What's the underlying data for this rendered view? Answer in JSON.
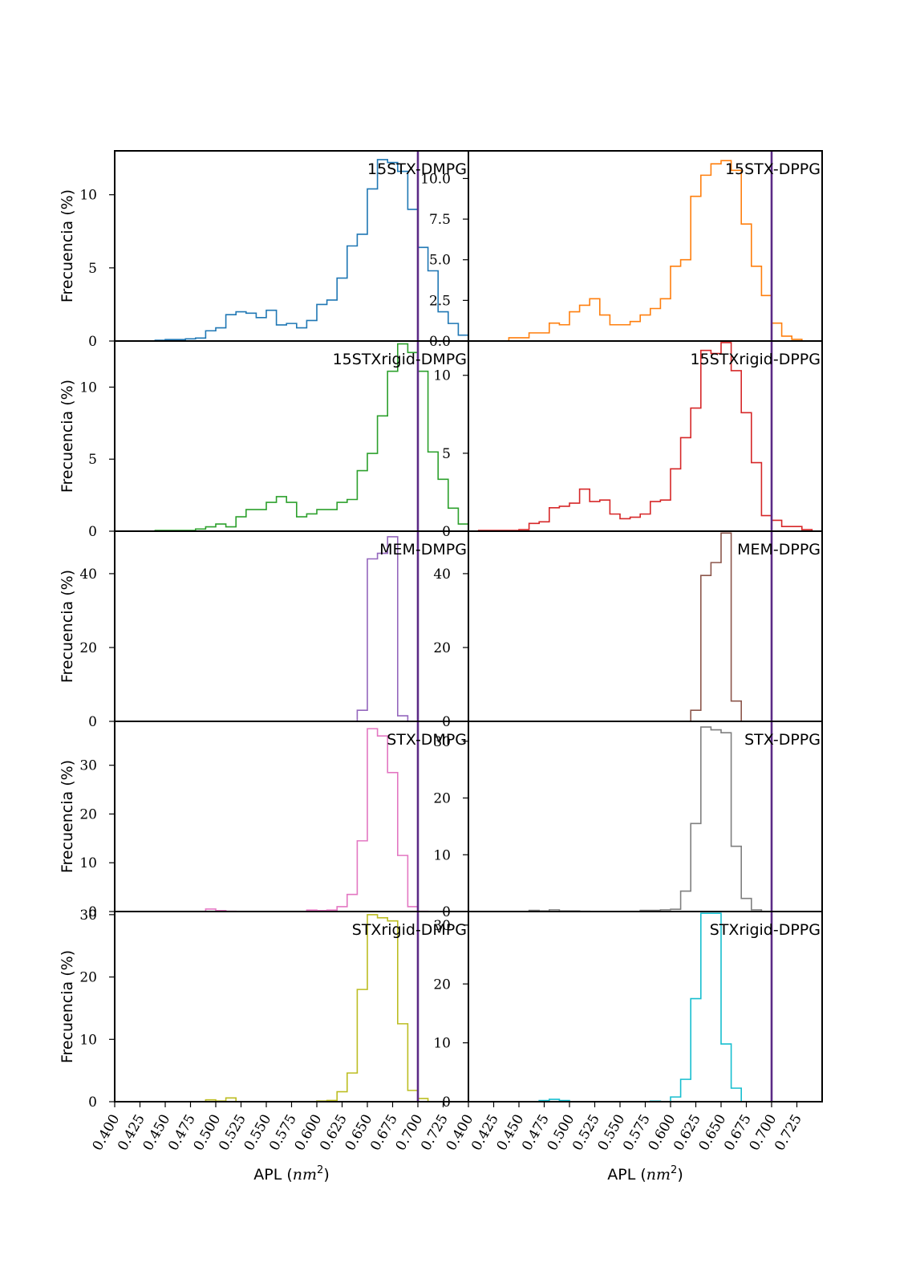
{
  "chart_data": [
    {
      "type": "histogram",
      "title": "15STX-DMPG",
      "ylabel": "Frecuencia (%)",
      "xlabel": "",
      "color": "#1f77b4",
      "ylim": [
        0,
        13
      ],
      "yticks": [
        0,
        5,
        10
      ],
      "bins": [
        0.44,
        0.45,
        0.46,
        0.47,
        0.48,
        0.49,
        0.5,
        0.51,
        0.52,
        0.53,
        0.54,
        0.55,
        0.56,
        0.57,
        0.58,
        0.59,
        0.6,
        0.61,
        0.62,
        0.63,
        0.64,
        0.65,
        0.66,
        0.67,
        0.68,
        0.69,
        0.7,
        0.71,
        0.72,
        0.73,
        0.74
      ],
      "values": [
        0.05,
        0.1,
        0.1,
        0.15,
        0.2,
        0.7,
        0.9,
        1.8,
        2.0,
        1.9,
        1.6,
        2.1,
        1.1,
        1.2,
        0.9,
        1.4,
        2.5,
        2.8,
        4.3,
        6.5,
        7.3,
        10.4,
        12.4,
        12.2,
        11.6,
        9.0,
        6.4,
        4.8,
        2.0,
        1.2,
        0.4
      ]
    },
    {
      "type": "histogram",
      "title": "15STX-DPPG",
      "ylabel": "",
      "xlabel": "",
      "color": "#ff7f0e",
      "ylim": [
        0,
        11.7
      ],
      "yticks": [
        0.0,
        2.5,
        5.0,
        7.5,
        10.0
      ],
      "bins": [
        0.44,
        0.45,
        0.46,
        0.47,
        0.48,
        0.49,
        0.5,
        0.51,
        0.52,
        0.53,
        0.54,
        0.55,
        0.56,
        0.57,
        0.58,
        0.59,
        0.6,
        0.61,
        0.62,
        0.63,
        0.64,
        0.65,
        0.66,
        0.67,
        0.68,
        0.69,
        0.7,
        0.71,
        0.72,
        0.73
      ],
      "values": [
        0.2,
        0.2,
        0.5,
        0.5,
        1.1,
        1.0,
        1.8,
        2.2,
        2.6,
        1.6,
        1.0,
        1.0,
        1.2,
        1.6,
        2.0,
        2.6,
        4.6,
        5.0,
        8.9,
        10.2,
        10.9,
        11.1,
        10.5,
        7.2,
        4.6,
        2.8,
        1.1,
        0.3,
        0.1,
        0.0
      ]
    },
    {
      "type": "histogram",
      "title": "15STXrigid-DMPG",
      "ylabel": "Frecuencia (%)",
      "xlabel": "",
      "color": "#2ca02c",
      "ylim": [
        0,
        13.2
      ],
      "yticks": [
        0,
        5,
        10
      ],
      "bins": [
        0.43,
        0.44,
        0.45,
        0.46,
        0.47,
        0.48,
        0.49,
        0.5,
        0.51,
        0.52,
        0.53,
        0.54,
        0.55,
        0.56,
        0.57,
        0.58,
        0.59,
        0.6,
        0.61,
        0.62,
        0.63,
        0.64,
        0.65,
        0.66,
        0.67,
        0.68,
        0.69,
        0.7,
        0.71,
        0.72,
        0.73,
        0.74
      ],
      "values": [
        0.0,
        0.05,
        0.05,
        0.05,
        0.05,
        0.15,
        0.3,
        0.5,
        0.3,
        1.0,
        1.5,
        1.5,
        2.0,
        2.4,
        2.0,
        1.0,
        1.2,
        1.5,
        1.5,
        2.0,
        2.2,
        4.2,
        5.4,
        8.0,
        11.1,
        13.0,
        12.4,
        11.1,
        5.5,
        3.6,
        1.6,
        0.5
      ]
    },
    {
      "type": "histogram",
      "title": "15STXrigid-DPPG",
      "ylabel": "",
      "xlabel": "",
      "color": "#d62728",
      "ylim": [
        0,
        12.2
      ],
      "yticks": [
        0,
        5,
        10
      ],
      "bins": [
        0.41,
        0.42,
        0.43,
        0.44,
        0.45,
        0.46,
        0.47,
        0.48,
        0.49,
        0.5,
        0.51,
        0.52,
        0.53,
        0.54,
        0.55,
        0.56,
        0.57,
        0.58,
        0.59,
        0.6,
        0.61,
        0.62,
        0.63,
        0.64,
        0.65,
        0.66,
        0.67,
        0.68,
        0.69,
        0.7,
        0.71,
        0.72,
        0.73,
        0.74
      ],
      "values": [
        0.05,
        0.05,
        0.05,
        0.05,
        0.1,
        0.5,
        0.6,
        1.5,
        1.6,
        1.8,
        2.7,
        1.9,
        2.0,
        1.1,
        0.8,
        0.9,
        1.1,
        1.9,
        2.0,
        4.0,
        6.0,
        7.9,
        11.6,
        11.4,
        12.1,
        10.3,
        7.6,
        4.4,
        1.0,
        0.7,
        0.3,
        0.3,
        0.1,
        0.0
      ]
    },
    {
      "type": "histogram",
      "title": "MEM-DMPG",
      "ylabel": "Frecuencia (%)",
      "xlabel": "",
      "color": "#9467bd",
      "ylim": [
        0,
        51.5
      ],
      "yticks": [
        0,
        20,
        40
      ],
      "bins": [
        0.64,
        0.65,
        0.66,
        0.67,
        0.68
      ],
      "values": [
        3.0,
        44.0,
        45.5,
        50.0,
        1.5
      ]
    },
    {
      "type": "histogram",
      "title": "MEM-DPPG",
      "ylabel": "",
      "xlabel": "",
      "color": "#8c564b",
      "ylim": [
        0,
        51.5
      ],
      "yticks": [
        0,
        20,
        40
      ],
      "bins": [
        0.62,
        0.63,
        0.64,
        0.65,
        0.66
      ],
      "values": [
        3.0,
        39.5,
        43.0,
        51.0,
        5.5
      ]
    },
    {
      "type": "histogram",
      "title": "STX-DMPG",
      "ylabel": "Frecuencia (%)",
      "xlabel": "",
      "color": "#e377c2",
      "ylim": [
        0,
        39
      ],
      "yticks": [
        0,
        10,
        20,
        30
      ],
      "bins": [
        0.49,
        0.5,
        0.51,
        0.52,
        0.53,
        0.54,
        0.55,
        0.56,
        0.57,
        0.58,
        0.59,
        0.6,
        0.61,
        0.62,
        0.63,
        0.64,
        0.65,
        0.66,
        0.67,
        0.68,
        0.69,
        0.7
      ],
      "values": [
        0.5,
        0.2,
        0.05,
        0.0,
        0.0,
        0.0,
        0.0,
        0.0,
        0.0,
        0.0,
        0.3,
        0.2,
        0.3,
        1.0,
        3.5,
        14.5,
        37.5,
        36.0,
        28.5,
        11.5,
        1.0,
        0.05
      ]
    },
    {
      "type": "histogram",
      "title": "STX-DPPG",
      "ylabel": "",
      "xlabel": "",
      "color": "#7f7f7f",
      "ylim": [
        0,
        33.5
      ],
      "yticks": [
        0,
        10,
        20,
        30
      ],
      "bins": [
        0.46,
        0.47,
        0.48,
        0.49,
        0.5,
        0.51,
        0.52,
        0.53,
        0.54,
        0.55,
        0.56,
        0.57,
        0.58,
        0.59,
        0.6,
        0.61,
        0.62,
        0.63,
        0.64,
        0.65,
        0.66,
        0.67,
        0.68
      ],
      "values": [
        0.2,
        0.1,
        0.3,
        0.1,
        0.1,
        0.05,
        0.0,
        0.0,
        0.0,
        0.0,
        0.0,
        0.2,
        0.2,
        0.3,
        0.4,
        3.6,
        15.5,
        32.5,
        32.0,
        31.5,
        11.5,
        2.3,
        0.3
      ]
    },
    {
      "type": "histogram",
      "title": "STXrigid-DMPG",
      "ylabel": "Frecuencia (%)",
      "xlabel": "APL (nm²)",
      "color": "#bcbd22",
      "ylim": [
        0,
        30.5
      ],
      "yticks": [
        0,
        10,
        20,
        30
      ],
      "bins": [
        0.48,
        0.49,
        0.5,
        0.51,
        0.52,
        0.53,
        0.54,
        0.55,
        0.56,
        0.57,
        0.58,
        0.59,
        0.6,
        0.61,
        0.62,
        0.63,
        0.64,
        0.65,
        0.66,
        0.67,
        0.68,
        0.69,
        0.7,
        0.71
      ],
      "values": [
        0.0,
        0.3,
        0.1,
        0.6,
        0.0,
        0.0,
        0.0,
        0.0,
        0.0,
        0.0,
        0.0,
        0.0,
        0.1,
        0.2,
        1.6,
        4.6,
        18.0,
        30.0,
        29.5,
        29.0,
        12.5,
        1.8,
        0.5,
        0.0
      ]
    },
    {
      "type": "histogram",
      "title": "STXrigid-DPPG",
      "ylabel": "",
      "xlabel": "APL (nm²)",
      "color": "#17becf",
      "ylim": [
        0,
        32.3
      ],
      "yticks": [
        0,
        10,
        20,
        30
      ],
      "bins": [
        0.47,
        0.48,
        0.49,
        0.5,
        0.51,
        0.52,
        0.53,
        0.54,
        0.55,
        0.56,
        0.57,
        0.58,
        0.59,
        0.6,
        0.61,
        0.62,
        0.63,
        0.64,
        0.65,
        0.66,
        0.67
      ],
      "values": [
        0.2,
        0.4,
        0.2,
        0.0,
        0.0,
        0.0,
        0.0,
        0.0,
        0.0,
        0.0,
        0.0,
        0.1,
        0.0,
        0.8,
        3.8,
        17.5,
        32.0,
        32.0,
        9.8,
        2.3,
        0.0
      ]
    }
  ],
  "shared": {
    "xlim": [
      0.4,
      0.75
    ],
    "xticks": [
      "0.400",
      "0.425",
      "0.450",
      "0.475",
      "0.500",
      "0.525",
      "0.550",
      "0.575",
      "0.600",
      "0.625",
      "0.650",
      "0.675",
      "0.700",
      "0.725"
    ],
    "reference_line_x": 0.7,
    "reference_line_color": "#5b2a86",
    "ylabel": "Frecuencia (%)",
    "xlabel_text": "APL",
    "xlabel_unit": "nm",
    "xlabel_exp": "2"
  }
}
